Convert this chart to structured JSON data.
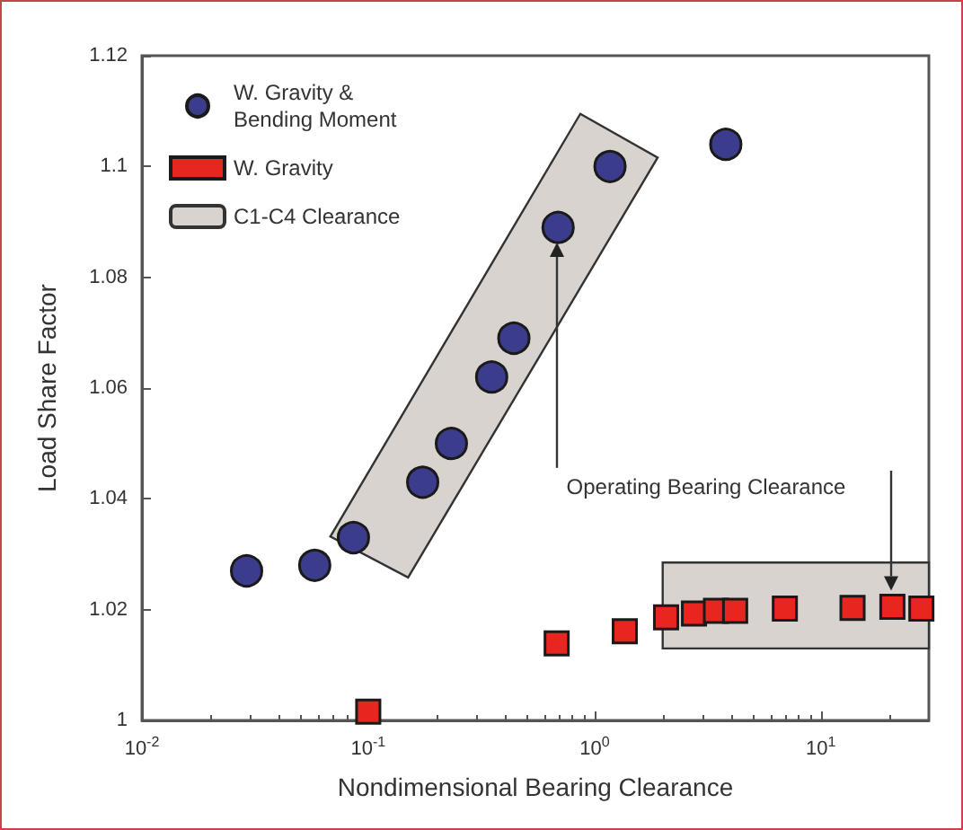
{
  "chart_data": {
    "type": "scatter",
    "xlabel": "Nondimensional Bearing Clearance",
    "ylabel": "Load Share Factor",
    "log": "x",
    "grid": false,
    "legend": "top left",
    "xlim": [
      0.01,
      30
    ],
    "xticks": [
      {
        "value": 0.01,
        "label": "10$^{-2}$"
      },
      {
        "value": 0.1,
        "label": "10$^{-1}$"
      },
      {
        "value": 1,
        "label": "10$^{0}$"
      },
      {
        "value": 10,
        "label": "10$^{1}$"
      }
    ],
    "ylim": [
      1,
      1.12
    ],
    "yticks": [
      1,
      1.02,
      1.04,
      1.06,
      1.08,
      1.1,
      1.12
    ],
    "series": [
      {
        "name": "W. Gravity & Bending Moment",
        "marker": "circle",
        "color": "#3c3c8c",
        "x": [
          0.029,
          0.058,
          0.086,
          0.174,
          0.233,
          0.351,
          0.44,
          0.69,
          1.17,
          3.8
        ],
        "values": [
          1.027,
          1.028,
          1.033,
          1.043,
          1.05,
          1.062,
          1.069,
          1.089,
          1.1,
          1.104
        ]
      },
      {
        "name": "W. Gravity",
        "marker": "square",
        "color": "#e8251f",
        "x": [
          0.1,
          0.68,
          1.36,
          2.07,
          2.75,
          3.44,
          4.18,
          6.93,
          13.8,
          20.7,
          27.8
        ],
        "values": [
          1.0016,
          1.0139,
          1.0161,
          1.0186,
          1.0193,
          1.0198,
          1.0198,
          1.0202,
          1.0203,
          1.0205,
          1.0202
        ]
      },
      {
        "name": "C1-C4 Clearance",
        "type": "area",
        "color": "#d8d3ce",
        "x": [
          0.865,
          1.9,
          0.15,
          0.068,
          null,
          2,
          30,
          30,
          2
        ],
        "values": [
          1.1095,
          1.1016,
          1.0258,
          1.0332,
          null,
          1.0285,
          1.0285,
          1.013,
          1.013
        ]
      }
    ],
    "annotations": [
      "Operating Bearing Clearance"
    ]
  }
}
